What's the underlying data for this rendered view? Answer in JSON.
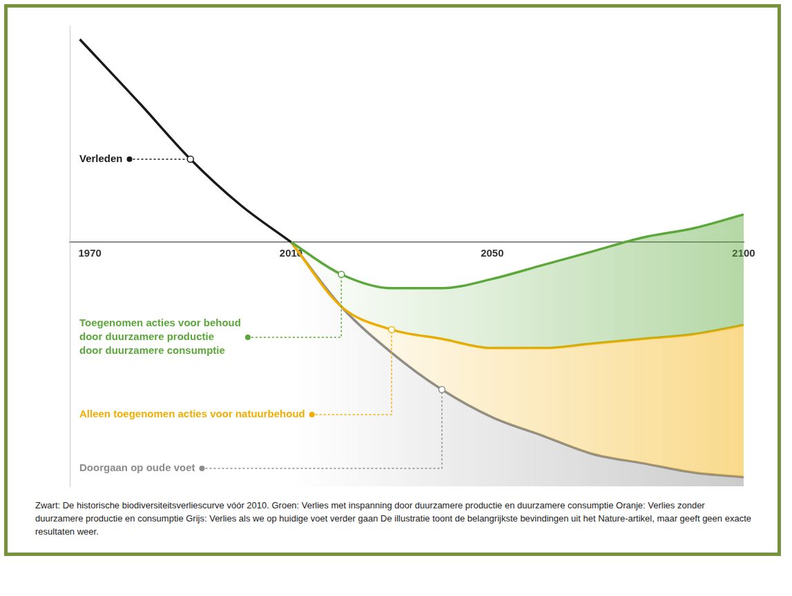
{
  "chart_data": {
    "type": "line",
    "xlim": [
      1966,
      2100
    ],
    "xticks": [
      1970,
      2010,
      2050,
      2100
    ],
    "ylim": [
      0,
      100
    ],
    "tick_labels": "x",
    "grid": false,
    "baseline": 53,
    "series": [
      {
        "label": [
          "Verleden"
        ],
        "label_at": 1990,
        "color": "#1a1a1a",
        "x": [
          1968,
          1980,
          1990,
          2000,
          2010
        ],
        "values": [
          97,
          83,
          71,
          61,
          53
        ]
      },
      {
        "label": [
          "Toegenomen acties voor behoud",
          "door duurzamere productie",
          "door duurzamere consumptie"
        ],
        "label_at": 2020,
        "color": "#5ba83a",
        "x": [
          2010,
          2020,
          2030,
          2040,
          2050,
          2060,
          2070,
          2080,
          2090,
          2100
        ],
        "values": [
          53,
          46,
          43,
          43,
          45,
          48,
          51,
          54,
          56,
          59
        ]
      },
      {
        "label": [
          "Alleen toegenomen acties voor natuurbehoud"
        ],
        "label_at": 2030,
        "color": "#f2ad00",
        "x": [
          2010,
          2020,
          2030,
          2040,
          2050,
          2060,
          2070,
          2080,
          2090,
          2100
        ],
        "values": [
          53,
          39,
          34,
          32,
          30,
          30,
          31,
          32,
          33,
          35
        ]
      },
      {
        "label": [
          "Doorgaan op oude voet"
        ],
        "label_at": 2040,
        "color": "#8c8c8c",
        "x": [
          2010,
          2020,
          2030,
          2040,
          2050,
          2060,
          2070,
          2080,
          2090,
          2100
        ],
        "values": [
          53,
          39,
          29,
          21,
          15,
          11,
          7,
          5,
          3,
          2
        ]
      }
    ],
    "caption": "Zwart: De historische biodiversiteitsverliescurve vóór 2010. Groen: Verlies met inspanning door duurzamere productie en duurzamere consumptie Oranje: Verlies zonder duurzamere productie en consumptie Grijs: Verlies als we op huidige voet verder gaan De illustratie toont de belangrijkste bevindingen uit het Nature-artikel, maar geeft geen exacte resultaten weer."
  }
}
